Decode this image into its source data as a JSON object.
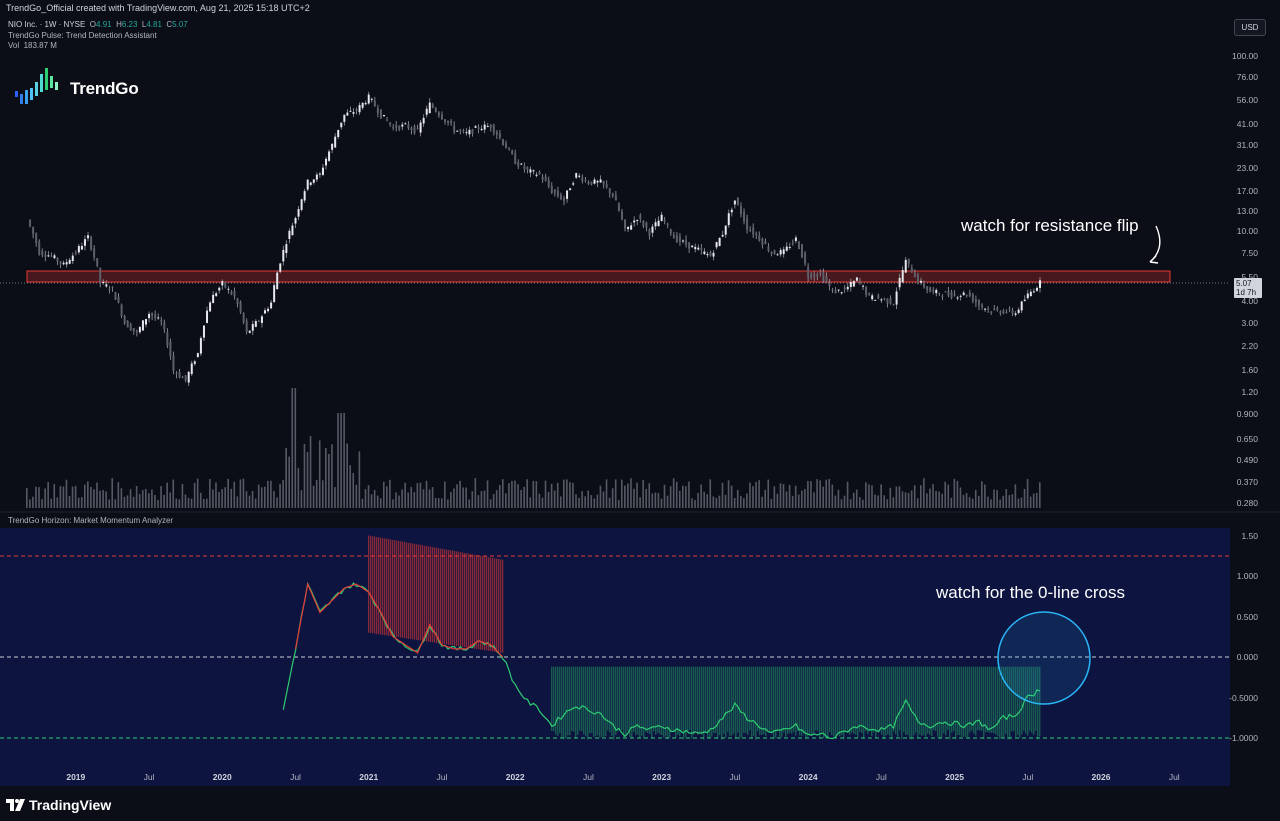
{
  "header": {
    "attribution": "TrendGo_Official created with TradingView.com, Aug 21, 2025 15:18 UTC+2"
  },
  "legend": {
    "symbol": "NIO Inc. · 1W · NYSE",
    "open_label": "O",
    "open": "4.91",
    "high_label": "H",
    "high": "6.23",
    "low_label": "L",
    "low": "4.81",
    "close_label": "C",
    "close": "5.07",
    "indicator": "TrendGo Pulse: Trend Detection Assistant",
    "volume_label": "Vol",
    "volume": "183.87 M"
  },
  "brand": {
    "name_part1": "Trend",
    "name_part2": "Go"
  },
  "currency": "USD",
  "price_badge": {
    "price": "5.07",
    "countdown": "1d 7h"
  },
  "price_axis": [
    "100.00",
    "76.00",
    "56.00",
    "41.00",
    "31.00",
    "23.00",
    "17.00",
    "13.00",
    "10.00",
    "7.50",
    "5.50",
    "4.00",
    "3.00",
    "2.20",
    "1.60",
    "1.20",
    "0.900",
    "0.650",
    "0.490",
    "0.370",
    "0.280"
  ],
  "indicator_panel": {
    "title": "TrendGo Horizon: Market Momentum Analyzer",
    "axis": [
      "1.50",
      "1.000",
      "0.500",
      "0.000",
      "-0.5000",
      "-1.0000"
    ]
  },
  "annotations": {
    "resistance": "watch for resistance flip",
    "zero_cross": "watch for the 0-line cross"
  },
  "time_axis": [
    {
      "label": "2019",
      "year": true
    },
    {
      "label": "Jul",
      "year": false
    },
    {
      "label": "2020",
      "year": true
    },
    {
      "label": "Jul",
      "year": false
    },
    {
      "label": "2021",
      "year": true
    },
    {
      "label": "Jul",
      "year": false
    },
    {
      "label": "2022",
      "year": true
    },
    {
      "label": "Jul",
      "year": false
    },
    {
      "label": "2023",
      "year": true
    },
    {
      "label": "Jul",
      "year": false
    },
    {
      "label": "2024",
      "year": true
    },
    {
      "label": "Jul",
      "year": false
    },
    {
      "label": "2025",
      "year": true
    },
    {
      "label": "Jul",
      "year": false
    },
    {
      "label": "2026",
      "year": true
    },
    {
      "label": "Jul",
      "year": false
    }
  ],
  "footer": {
    "brand": "TradingView"
  },
  "colors": {
    "background": "#0b0d17",
    "indicator_bg": "#0d1440",
    "resistance_zone": "#e53935",
    "bullish": "#2ecc71",
    "bearish": "#e53935",
    "candle": "#d1d4dc",
    "highlight_circle": "#29b6f6"
  },
  "chart_data": {
    "type": "line",
    "scale": "log",
    "ylim": [
      0.28,
      100
    ],
    "x_start": "2018-09",
    "x_end": "2025-08",
    "resistance_zone": [
      5.0,
      6.1
    ],
    "last_close": 5.07,
    "price_series": [
      [
        "2018-09",
        11.6
      ],
      [
        "2018-10",
        7.6
      ],
      [
        "2018-11",
        7.2
      ],
      [
        "2018-12",
        6.4
      ],
      [
        "2019-01",
        7.6
      ],
      [
        "2019-02",
        9.2
      ],
      [
        "2019-03",
        5.1
      ],
      [
        "2019-04",
        4.6
      ],
      [
        "2019-05",
        3.0
      ],
      [
        "2019-06",
        2.6
      ],
      [
        "2019-07",
        3.4
      ],
      [
        "2019-08",
        3.0
      ],
      [
        "2019-09",
        1.6
      ],
      [
        "2019-10",
        1.4
      ],
      [
        "2019-11",
        2.0
      ],
      [
        "2019-12",
        4.0
      ],
      [
        "2020-01",
        5.0
      ],
      [
        "2020-02",
        4.2
      ],
      [
        "2020-03",
        2.6
      ],
      [
        "2020-04",
        3.1
      ],
      [
        "2020-05",
        3.9
      ],
      [
        "2020-06",
        7.7
      ],
      [
        "2020-07",
        12.0
      ],
      [
        "2020-08",
        19.0
      ],
      [
        "2020-09",
        21.0
      ],
      [
        "2020-10",
        31.0
      ],
      [
        "2020-11",
        46.0
      ],
      [
        "2020-12",
        49.0
      ],
      [
        "2021-01",
        58.0
      ],
      [
        "2021-02",
        46.0
      ],
      [
        "2021-03",
        39.0
      ],
      [
        "2021-04",
        40.0
      ],
      [
        "2021-05",
        37.0
      ],
      [
        "2021-06",
        53.0
      ],
      [
        "2021-07",
        45.0
      ],
      [
        "2021-08",
        38.0
      ],
      [
        "2021-09",
        36.0
      ],
      [
        "2021-10",
        39.0
      ],
      [
        "2021-11",
        40.0
      ],
      [
        "2021-12",
        32.0
      ],
      [
        "2022-01",
        25.0
      ],
      [
        "2022-02",
        22.0
      ],
      [
        "2022-03",
        21.0
      ],
      [
        "2022-04",
        17.0
      ],
      [
        "2022-05",
        15.0
      ],
      [
        "2022-06",
        21.0
      ],
      [
        "2022-07",
        19.0
      ],
      [
        "2022-08",
        19.0
      ],
      [
        "2022-09",
        16.0
      ],
      [
        "2022-10",
        10.0
      ],
      [
        "2022-11",
        12.0
      ],
      [
        "2022-12",
        9.8
      ],
      [
        "2023-01",
        12.0
      ],
      [
        "2023-02",
        9.2
      ],
      [
        "2023-03",
        8.4
      ],
      [
        "2023-04",
        7.8
      ],
      [
        "2023-05",
        7.2
      ],
      [
        "2023-06",
        9.7
      ],
      [
        "2023-07",
        15.0
      ],
      [
        "2023-08",
        10.5
      ],
      [
        "2023-09",
        9.1
      ],
      [
        "2023-10",
        7.5
      ],
      [
        "2023-11",
        7.6
      ],
      [
        "2023-12",
        9.0
      ],
      [
        "2024-01",
        5.6
      ],
      [
        "2024-02",
        5.7
      ],
      [
        "2024-03",
        4.5
      ],
      [
        "2024-04",
        4.6
      ],
      [
        "2024-05",
        5.3
      ],
      [
        "2024-06",
        4.2
      ],
      [
        "2024-07",
        4.1
      ],
      [
        "2024-08",
        3.9
      ],
      [
        "2024-09",
        6.7
      ],
      [
        "2024-10",
        5.2
      ],
      [
        "2024-11",
        4.5
      ],
      [
        "2024-12",
        4.4
      ],
      [
        "2025-01",
        4.3
      ],
      [
        "2025-02",
        4.4
      ],
      [
        "2025-03",
        3.8
      ],
      [
        "2025-04",
        3.5
      ],
      [
        "2025-05",
        3.5
      ],
      [
        "2025-06",
        3.4
      ],
      [
        "2025-07",
        4.3
      ],
      [
        "2025-08",
        5.07
      ]
    ],
    "momentum_ylim": [
      -1.2,
      1.6
    ],
    "momentum_levels": [
      1.25,
      0,
      -1
    ],
    "momentum_series": [
      [
        "2020-06",
        -0.65
      ],
      [
        "2020-07",
        0.1
      ],
      [
        "2020-08",
        0.9
      ],
      [
        "2020-09",
        0.55
      ],
      [
        "2020-10",
        0.7
      ],
      [
        "2020-11",
        0.85
      ],
      [
        "2020-12",
        0.9
      ],
      [
        "2021-01",
        0.8
      ],
      [
        "2021-02",
        0.55
      ],
      [
        "2021-03",
        0.25
      ],
      [
        "2021-04",
        0.15
      ],
      [
        "2021-05",
        0.05
      ],
      [
        "2021-06",
        0.4
      ],
      [
        "2021-07",
        0.15
      ],
      [
        "2021-08",
        0.1
      ],
      [
        "2021-09",
        0.1
      ],
      [
        "2021-10",
        0.2
      ],
      [
        "2021-11",
        0.15
      ],
      [
        "2021-12",
        0.0
      ],
      [
        "2022-01",
        -0.35
      ],
      [
        "2022-02",
        -0.55
      ],
      [
        "2022-03",
        -0.65
      ],
      [
        "2022-04",
        -0.85
      ],
      [
        "2022-05",
        -0.7
      ],
      [
        "2022-06",
        -0.6
      ],
      [
        "2022-07",
        -0.65
      ],
      [
        "2022-08",
        -0.7
      ],
      [
        "2022-09",
        -0.85
      ],
      [
        "2022-10",
        -0.95
      ],
      [
        "2022-11",
        -0.85
      ],
      [
        "2022-12",
        -0.9
      ],
      [
        "2023-01",
        -0.85
      ],
      [
        "2023-02",
        -0.9
      ],
      [
        "2023-03",
        -0.92
      ],
      [
        "2023-04",
        -0.95
      ],
      [
        "2023-05",
        -0.9
      ],
      [
        "2023-06",
        -0.75
      ],
      [
        "2023-07",
        -0.6
      ],
      [
        "2023-08",
        -0.75
      ],
      [
        "2023-09",
        -0.85
      ],
      [
        "2023-10",
        -0.95
      ],
      [
        "2023-11",
        -0.9
      ],
      [
        "2023-12",
        -0.85
      ],
      [
        "2024-01",
        -0.97
      ],
      [
        "2024-02",
        -0.95
      ],
      [
        "2024-03",
        -1.0
      ],
      [
        "2024-04",
        -0.92
      ],
      [
        "2024-05",
        -0.85
      ],
      [
        "2024-06",
        -0.88
      ],
      [
        "2024-07",
        -0.9
      ],
      [
        "2024-08",
        -0.85
      ],
      [
        "2024-09",
        -0.55
      ],
      [
        "2024-10",
        -0.8
      ],
      [
        "2024-11",
        -0.85
      ],
      [
        "2024-12",
        -0.8
      ],
      [
        "2025-01",
        -0.82
      ],
      [
        "2025-02",
        -0.85
      ],
      [
        "2025-03",
        -0.8
      ],
      [
        "2025-04",
        -0.9
      ],
      [
        "2025-05",
        -0.75
      ],
      [
        "2025-06",
        -0.72
      ],
      [
        "2025-07",
        -0.5
      ],
      [
        "2025-08",
        -0.4
      ]
    ]
  }
}
